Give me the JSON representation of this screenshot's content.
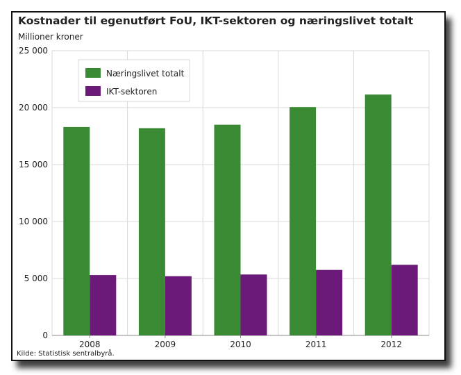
{
  "chart_data": {
    "type": "bar",
    "title": "Kostnader til egenutført FoU, IKT-sektoren og næringslivet totalt",
    "subtitle": "Millioner kroner",
    "source": "Kilde: Statistisk sentralbyrå.",
    "categories": [
      "2008",
      "2009",
      "2010",
      "2011",
      "2012"
    ],
    "series": [
      {
        "name": "Næringslivet totalt",
        "color": "#3a8a34",
        "values": [
          18300,
          18200,
          18500,
          20050,
          21150
        ]
      },
      {
        "name": "IKT-sektoren",
        "color": "#6c1a7a",
        "values": [
          5300,
          5200,
          5350,
          5750,
          6200
        ]
      }
    ],
    "ylim": [
      0,
      25000
    ],
    "yticks": [
      0,
      5000,
      10000,
      15000,
      20000,
      25000
    ],
    "ytick_labels": [
      "0",
      "5 000",
      "10 000",
      "15 000",
      "20 000",
      "25 000"
    ],
    "grid": true,
    "legend_position": "top-left"
  }
}
